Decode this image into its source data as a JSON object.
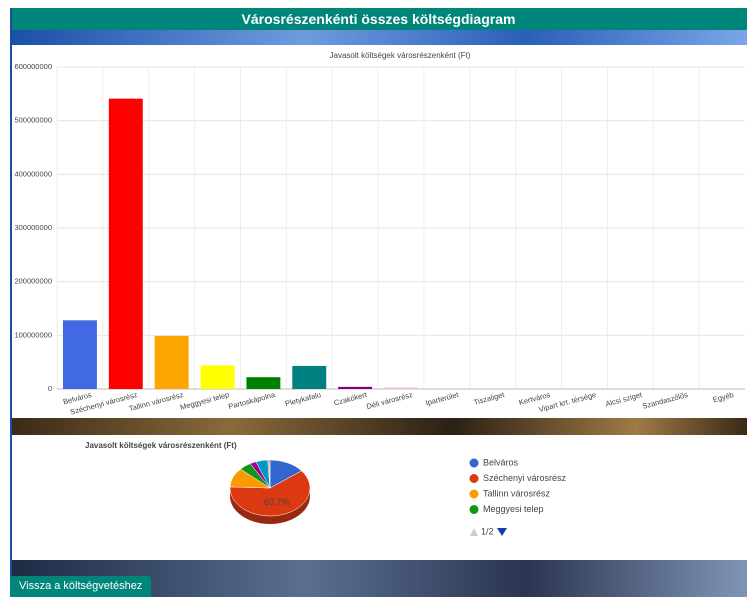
{
  "page": {
    "title": "Városrészenkénti összes költségdiagram",
    "back_button": "Vissza a költségvetéshez",
    "legend_pager": "1/2"
  },
  "chart_data": [
    {
      "type": "bar",
      "title": "Javasolt költségek városrészenként (Ft)",
      "categories": [
        "Belváros",
        "Széchenyi városrész",
        "Tallinn városrész",
        "Meggyesi telep",
        "Partoskápolna",
        "Pletykafalu",
        "Czakókert",
        "Déli városrész",
        "Iparterület",
        "Tiszaliget",
        "Kertváros",
        "Vipart krt. térsége",
        "Alcsi sziget",
        "Szandaszőlős",
        "Egyéb"
      ],
      "values": [
        128000000,
        541000000,
        99000000,
        44000000,
        22000000,
        43000000,
        4000000,
        3000000,
        0,
        0,
        0,
        0,
        0,
        0,
        0
      ],
      "colors": [
        "#4169e1",
        "#ff0000",
        "#ffa500",
        "#ffff00",
        "#008000",
        "#008080",
        "#800080",
        "#ffc0cb",
        "#a52a2a",
        "#808080",
        "#000080",
        "#808000",
        "#00ffff",
        "#ff00ff",
        "#000000"
      ],
      "ylim": [
        0,
        600000000
      ],
      "yticks": [
        0,
        100000000,
        200000000,
        300000000,
        400000000,
        500000000,
        600000000
      ],
      "grid": true
    },
    {
      "type": "pie",
      "title": "Javasolt költségek városrészenként (Ft)",
      "categories": [
        "Belváros",
        "Széchenyi városrész",
        "Tallinn városrész",
        "Meggyesi telep",
        null,
        null,
        null,
        null
      ],
      "values": [
        14.4,
        60.7,
        11.1,
        4.9,
        2.5,
        4.8,
        0.5,
        0.4
      ],
      "value_labels": [
        null,
        "60.7%",
        null,
        null,
        null,
        null,
        null,
        null
      ],
      "colors": [
        "#3366cc",
        "#dc3912",
        "#ff9900",
        "#109618",
        "#990099",
        "#0099c6",
        "#dd4477",
        "#66aa00"
      ]
    }
  ]
}
